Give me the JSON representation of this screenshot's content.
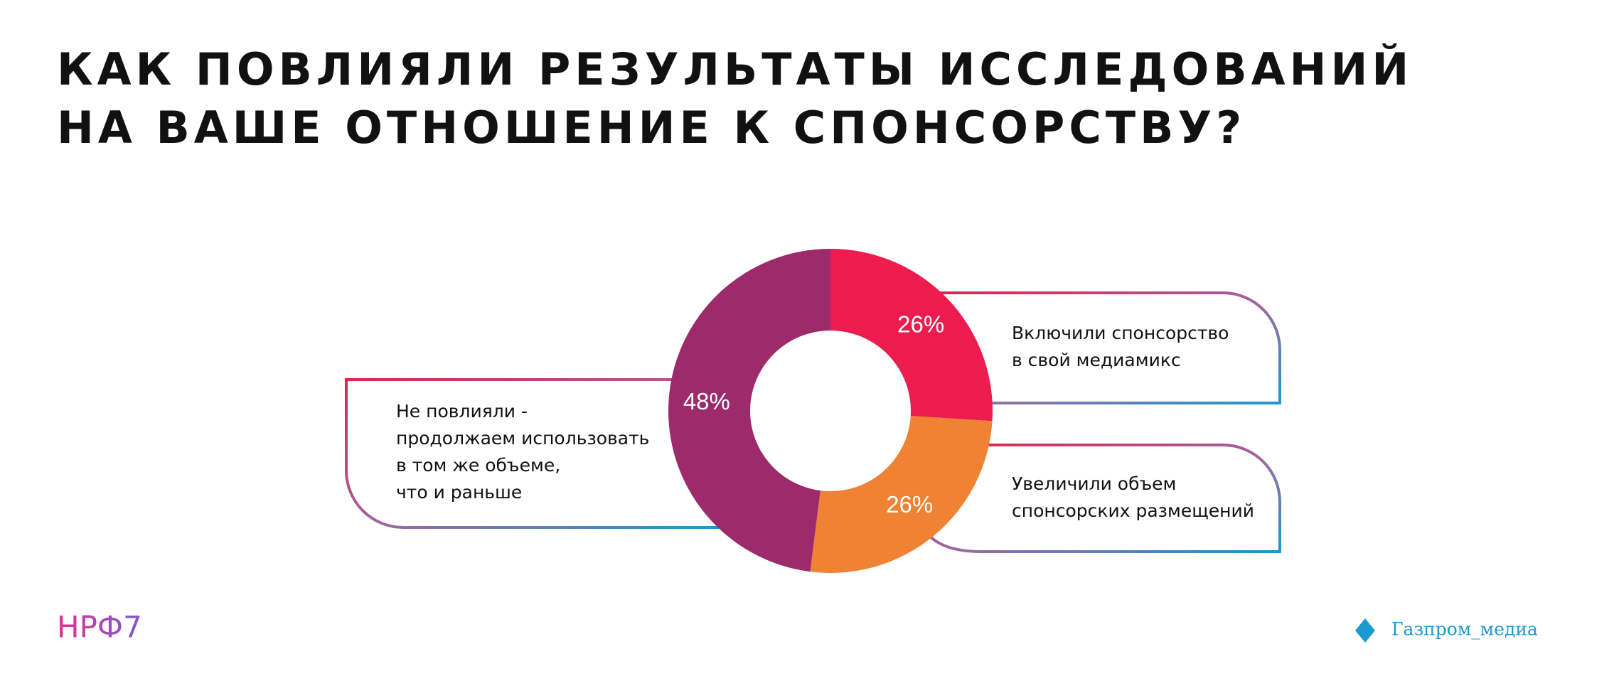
{
  "chart_data": {
    "type": "pie",
    "donut": true,
    "title": [
      "КАК ПОВЛИЯЛИ РЕЗУЛЬТАТЫ ИССЛЕДОВАНИЙ",
      "НА ВАШЕ ОТНОШЕНИЕ К СПОНСОРСТВУ?"
    ],
    "categories": [
      [
        "Включили спонсорство",
        "в свой медиамикс"
      ],
      [
        "Увеличили объем",
        "спонсорских размещений"
      ],
      [
        "Не повлияли -",
        "продолжаем использовать",
        "в том же объеме,",
        "что и раньше"
      ]
    ],
    "values": [
      26,
      26,
      48
    ],
    "value_labels": [
      "26%",
      "26%",
      "48%"
    ],
    "colors": [
      "#ec1c4f",
      "#f08233",
      "#9d2a6b"
    ]
  },
  "footer": {
    "left_logo": "НРФ7",
    "right_logo": "Газпром_медиа"
  }
}
